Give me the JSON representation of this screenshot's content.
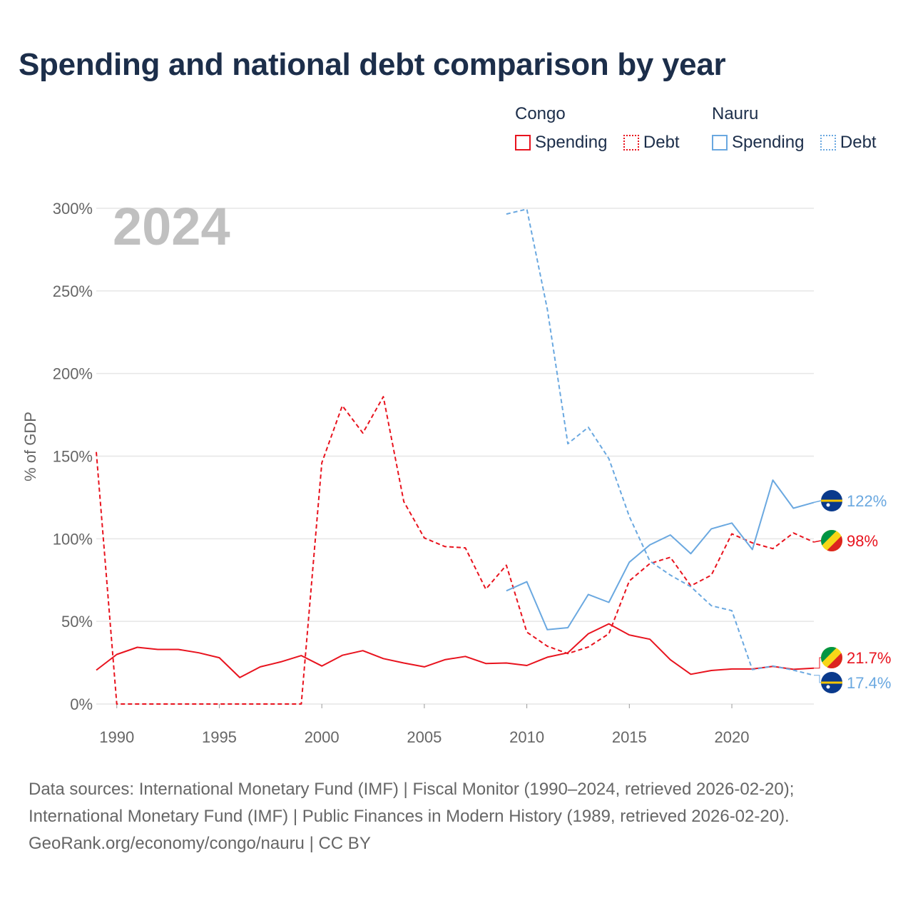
{
  "title": "Spending and national debt comparison by year",
  "legend": {
    "groups": [
      {
        "name": "Congo",
        "color": "#e8131e",
        "items": [
          {
            "label": "Spending",
            "style": "solid"
          },
          {
            "label": "Debt",
            "style": "dotted"
          }
        ]
      },
      {
        "name": "Nauru",
        "color": "#6aa8e0",
        "items": [
          {
            "label": "Spending",
            "style": "solid"
          },
          {
            "label": "Debt",
            "style": "dotted"
          }
        ]
      }
    ]
  },
  "chart_data": {
    "type": "line",
    "year_label": "2024",
    "ylabel": "% of GDP",
    "xlim": [
      1989,
      2024
    ],
    "ylim": [
      0,
      300
    ],
    "x_ticks": [
      1990,
      1995,
      2000,
      2005,
      2010,
      2015,
      2020
    ],
    "y_ticks": [
      0,
      50,
      100,
      150,
      200,
      250,
      300
    ],
    "y_tick_labels": [
      "0%",
      "50%",
      "100%",
      "150%",
      "200%",
      "250%",
      "300%"
    ],
    "grid": true,
    "series": [
      {
        "name": "Congo Spending",
        "country": "Congo",
        "metric": "Spending",
        "color": "#e8131e",
        "dash": "solid",
        "points": [
          [
            1989,
            20.5
          ],
          [
            1990,
            30
          ],
          [
            1991,
            34.3
          ],
          [
            1992,
            33
          ],
          [
            1993,
            33
          ],
          [
            1994,
            31
          ],
          [
            1995,
            28
          ],
          [
            1996,
            16
          ],
          [
            1997,
            22.5
          ],
          [
            1998,
            25.5
          ],
          [
            1999,
            29.3
          ],
          [
            2000,
            23
          ],
          [
            2001,
            29.5
          ],
          [
            2002,
            32.3
          ],
          [
            2003,
            27.5
          ],
          [
            2004,
            24.8
          ],
          [
            2005,
            22.5
          ],
          [
            2006,
            26.8
          ],
          [
            2007,
            28.8
          ],
          [
            2008,
            24.5
          ],
          [
            2009,
            24.8
          ],
          [
            2010,
            23.3
          ],
          [
            2011,
            28.3
          ],
          [
            2012,
            31
          ],
          [
            2013,
            42.5
          ],
          [
            2014,
            48.5
          ],
          [
            2015,
            41.8
          ],
          [
            2016,
            39.2
          ],
          [
            2017,
            26.8
          ],
          [
            2018,
            18
          ],
          [
            2019,
            20.3
          ],
          [
            2020,
            21.2
          ],
          [
            2021,
            21.2
          ],
          [
            2022,
            22.8
          ],
          [
            2023,
            21
          ],
          [
            2024,
            21.7
          ]
        ],
        "end_label": "21.7%"
      },
      {
        "name": "Congo Debt",
        "country": "Congo",
        "metric": "Debt",
        "color": "#e8131e",
        "dash": "dashed",
        "points": [
          [
            1989,
            152.5
          ],
          [
            1990,
            0
          ],
          [
            1991,
            0
          ],
          [
            1992,
            0
          ],
          [
            1993,
            0
          ],
          [
            1994,
            0
          ],
          [
            1995,
            0
          ],
          [
            1996,
            0
          ],
          [
            1997,
            0
          ],
          [
            1998,
            0
          ],
          [
            1999,
            0
          ],
          [
            2000,
            146
          ],
          [
            2001,
            180.5
          ],
          [
            2002,
            164
          ],
          [
            2003,
            186
          ],
          [
            2004,
            122.5
          ],
          [
            2005,
            100.5
          ],
          [
            2006,
            95.3
          ],
          [
            2007,
            94.5
          ],
          [
            2008,
            69.5
          ],
          [
            2009,
            84
          ],
          [
            2010,
            43.5
          ],
          [
            2011,
            35
          ],
          [
            2012,
            30.5
          ],
          [
            2013,
            34.5
          ],
          [
            2014,
            42.5
          ],
          [
            2015,
            74.5
          ],
          [
            2016,
            85
          ],
          [
            2017,
            88.8
          ],
          [
            2018,
            71.5
          ],
          [
            2019,
            78
          ],
          [
            2020,
            103
          ],
          [
            2021,
            97.5
          ],
          [
            2022,
            94
          ],
          [
            2023,
            103.5
          ],
          [
            2024,
            98
          ]
        ],
        "end_label": "98%"
      },
      {
        "name": "Nauru Spending",
        "country": "Nauru",
        "metric": "Spending",
        "color": "#6aa8e0",
        "dash": "solid",
        "points": [
          [
            2009,
            68.5
          ],
          [
            2010,
            74
          ],
          [
            2011,
            45
          ],
          [
            2012,
            46.2
          ],
          [
            2013,
            66.3
          ],
          [
            2014,
            61.5
          ],
          [
            2015,
            85.8
          ],
          [
            2016,
            96.3
          ],
          [
            2017,
            102.3
          ],
          [
            2018,
            91
          ],
          [
            2019,
            106
          ],
          [
            2020,
            109.5
          ],
          [
            2021,
            93.5
          ],
          [
            2022,
            135.5
          ],
          [
            2023,
            118.5
          ],
          [
            2024,
            122
          ]
        ],
        "end_label": "122%"
      },
      {
        "name": "Nauru Debt",
        "country": "Nauru",
        "metric": "Debt",
        "color": "#6aa8e0",
        "dash": "dashed",
        "points": [
          [
            2009,
            296.5
          ],
          [
            2010,
            299.5
          ],
          [
            2011,
            239
          ],
          [
            2012,
            157.5
          ],
          [
            2013,
            167.5
          ],
          [
            2014,
            148.5
          ],
          [
            2015,
            113.5
          ],
          [
            2016,
            86.5
          ],
          [
            2017,
            78
          ],
          [
            2018,
            71
          ],
          [
            2019,
            59.5
          ],
          [
            2020,
            56.5
          ],
          [
            2021,
            20.8
          ],
          [
            2022,
            23
          ],
          [
            2023,
            20.5
          ],
          [
            2024,
            17.4
          ]
        ],
        "end_label": "17.4%"
      }
    ]
  },
  "footer": {
    "lines": [
      "Data sources: International Monetary Fund (IMF) | Fiscal Monitor (1990–2024, retrieved 2026-02-20);",
      "International Monetary Fund (IMF) | Public Finances in Modern History (1989, retrieved 2026-02-20).",
      "GeoRank.org/economy/congo/nauru | CC BY"
    ]
  }
}
